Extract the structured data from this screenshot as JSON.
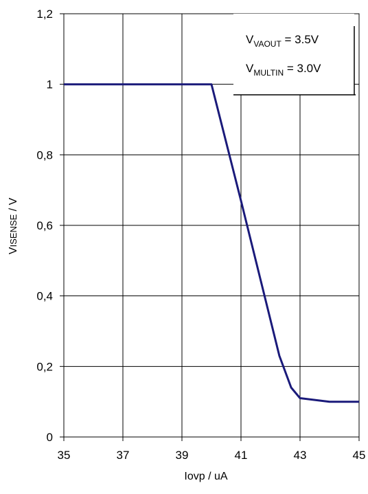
{
  "chart_data": {
    "type": "line",
    "xlabel": "Iovp / uA",
    "ylabel_main": "V",
    "ylabel_sub": "ISENSE",
    "ylabel_tail": " / V",
    "xlim": [
      35,
      45
    ],
    "ylim": [
      0,
      1.2
    ],
    "x_ticks": [
      35,
      37,
      39,
      41,
      43,
      45
    ],
    "x_tick_labels": [
      "35",
      "37",
      "39",
      "41",
      "43",
      "45"
    ],
    "y_ticks": [
      0,
      0.2,
      0.4,
      0.6,
      0.8,
      1.0,
      1.2
    ],
    "y_tick_labels": [
      "0",
      "0,2",
      "0,4",
      "0,6",
      "0,8",
      "1",
      "1,2"
    ],
    "grid": true,
    "series": [
      {
        "color": "#1a1a7a",
        "x": [
          35,
          40,
          41,
          42.3,
          42.7,
          43,
          44,
          45
        ],
        "y": [
          1.0,
          1.0,
          0.67,
          0.23,
          0.14,
          0.11,
          0.1,
          0.1
        ]
      }
    ],
    "annotation": {
      "line1": {
        "main": "V",
        "sub": "VAOUT",
        "tail": " = 3.5V"
      },
      "line2": {
        "main": "V",
        "sub": "MULTIN",
        "tail": " = 3.0V"
      }
    }
  }
}
